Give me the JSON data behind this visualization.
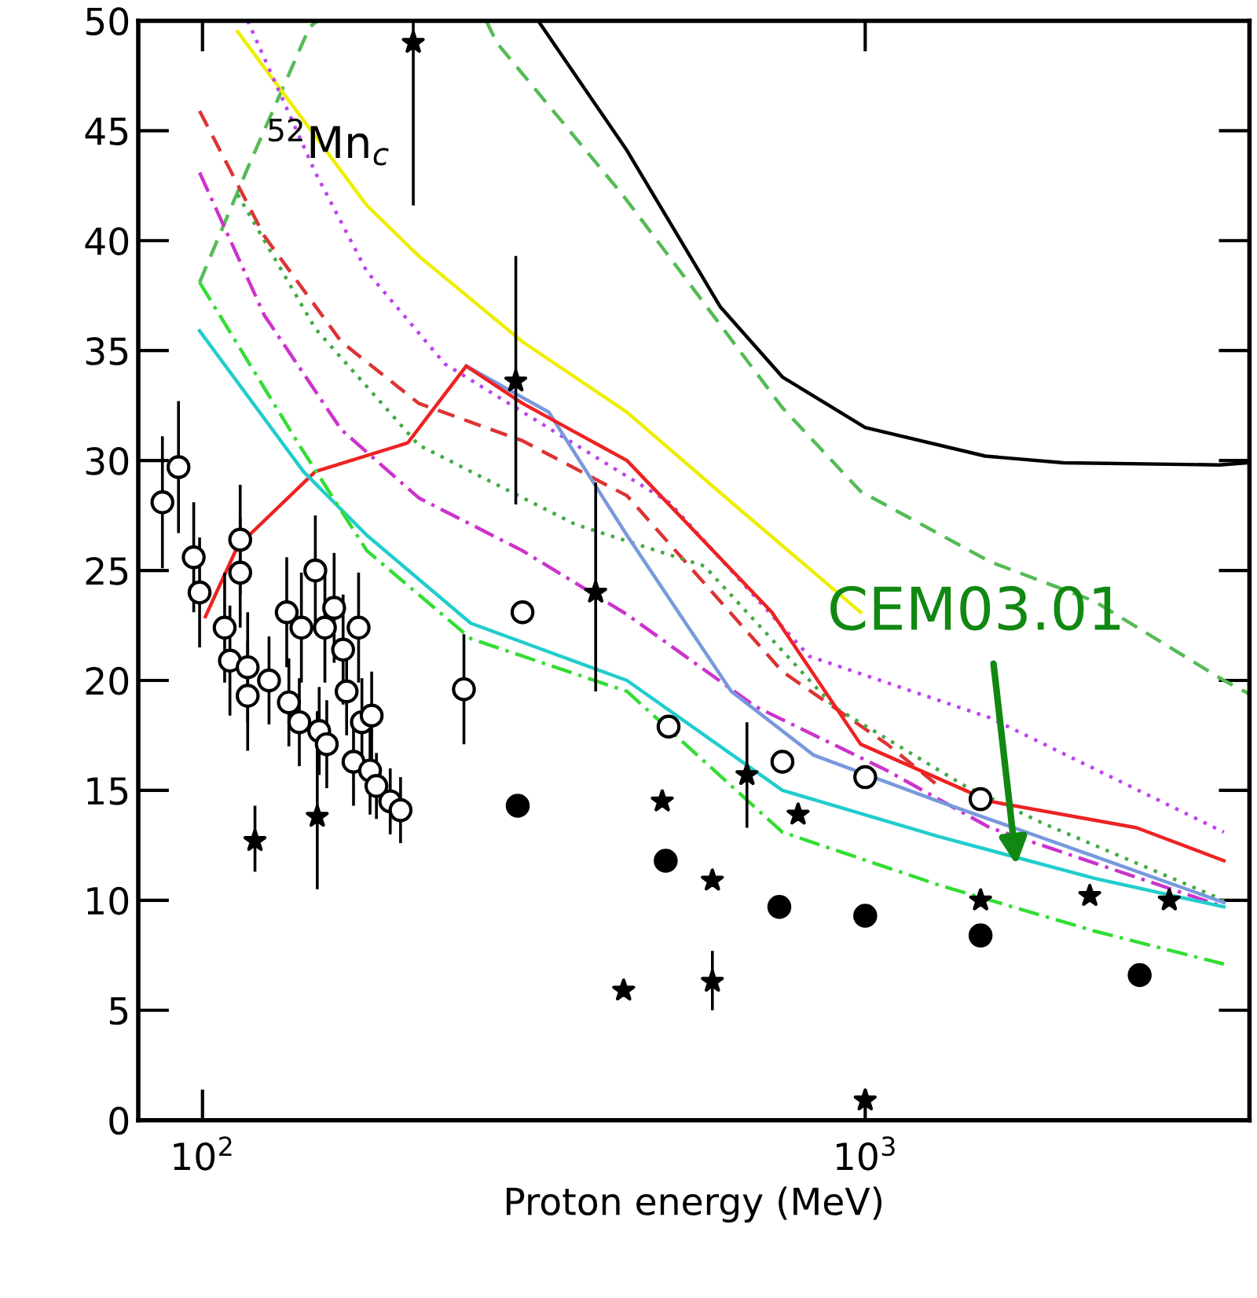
{
  "chart_data": {
    "type": "line",
    "xlabel": "Proton energy (MeV)",
    "log": "x",
    "xlim": [
      80,
      3800
    ],
    "xticks": [
      {
        "value": 100,
        "label": "10$^{2}$"
      },
      {
        "value": 1000,
        "label": "10$^{3}$"
      }
    ],
    "ylim": [
      0,
      50
    ],
    "yticks": [
      0,
      5,
      10,
      15,
      20,
      25,
      30,
      35,
      40,
      45,
      50
    ],
    "grid": false,
    "legend": false,
    "annotations": [
      "$^{52}$Mn$_{c}$",
      {
        "text": "CEM03.01",
        "x": 1691,
        "y": 11.6
      }
    ],
    "series": [
      {
        "color": "#000000",
        "line_style": "solid",
        "x": [
          321,
          437,
          604,
          750,
          1000,
          1518,
          1990,
          3421,
          3790
        ],
        "values": [
          50,
          44.1,
          37.0,
          33.8,
          31.5,
          30.2,
          29.9,
          29.8,
          29.9
        ]
      },
      {
        "color": "#55bb55",
        "line_style": "dashed",
        "x": [
          268,
          278,
          430,
          461,
          750,
          984,
          1543,
          2218,
          3477,
          3790
        ],
        "values": [
          50,
          49,
          42.1,
          40.9,
          32.4,
          28.6,
          25.4,
          23.6,
          20.0,
          19.4
        ]
      },
      {
        "type": "line",
        "color": "#55bb55",
        "line_style": "dashed",
        "x": [
          99,
          117,
          145,
          149
        ],
        "values": [
          38.1,
          43.3,
          49.7,
          50
        ]
      },
      {
        "type": "line",
        "color": "#eeee00",
        "line_style": "solid",
        "x": [
          113,
          177,
          212,
          304,
          437,
          628,
          984
        ],
        "values": [
          49.5,
          41.6,
          39.3,
          35.4,
          32.2,
          28.1,
          23.1
        ]
      },
      {
        "type": "line",
        "color": "#bb44ee",
        "line_style": "dotted",
        "x": [
          117,
          148,
          177,
          232,
          297,
          506,
          823,
          1543,
          3477
        ],
        "values": [
          50,
          43.1,
          38.6,
          34.4,
          32.4,
          28.1,
          21.1,
          18.3,
          13.1
        ]
      },
      {
        "type": "line",
        "color": "#dd3333",
        "line_style": "dashed",
        "x": [
          99,
          124,
          162,
          212,
          304,
          437,
          750,
          1079,
          1290
        ],
        "values": [
          45.9,
          40.2,
          35.4,
          32.6,
          30.9,
          28.4,
          20.4,
          17.1,
          15.2
        ]
      },
      {
        "type": "line",
        "color": "#cc33cc",
        "line_style": "dashdot",
        "x": [
          99,
          124,
          162,
          212,
          304,
          437,
          684,
          1079,
          1543,
          3477
        ],
        "values": [
          43.1,
          36.6,
          31.4,
          28.3,
          25.9,
          23.0,
          18.8,
          15.9,
          13.3,
          9.7
        ]
      },
      {
        "type": "line",
        "color": "#44aa44",
        "line_style": "dotted",
        "x": [
          113,
          148,
          212,
          365,
          572,
          897,
          1414,
          1855,
          3477
        ],
        "values": [
          42.1,
          36.0,
          30.7,
          27.1,
          25.2,
          18.8,
          15.2,
          13.5,
          10.0
        ]
      },
      {
        "type": "line",
        "color": "#7799dd",
        "line_style": "solid",
        "x": [
          250,
          333,
          437,
          628,
          836,
          1290,
          2218,
          3477
        ],
        "values": [
          34.3,
          32.2,
          26.6,
          19.5,
          16.6,
          14.5,
          12.0,
          9.9
        ]
      },
      {
        "type": "line",
        "color": "#ee2222",
        "line_style": "solid",
        "x": [
          101,
          113,
          148,
          204,
          250,
          304,
          437,
          723,
          984,
          1543,
          2567,
          3477
        ],
        "values": [
          22.9,
          26.1,
          29.5,
          30.8,
          34.3,
          32.6,
          30.0,
          23.1,
          17.1,
          14.5,
          13.3,
          11.8
        ]
      },
      {
        "type": "line",
        "color": "#22cccc",
        "line_style": "solid",
        "x": [
          99,
          142,
          177,
          254,
          437,
          750,
          1290,
          2218,
          3477
        ],
        "values": [
          35.9,
          29.5,
          26.6,
          22.6,
          20.0,
          15.0,
          12.9,
          11.0,
          9.7
        ]
      },
      {
        "type": "line",
        "color": "#33dd33",
        "line_style": "dashdot",
        "x": [
          99,
          140,
          177,
          254,
          437,
          750,
          1290,
          2218,
          3477
        ],
        "values": [
          38.1,
          30.7,
          25.9,
          21.9,
          19.5,
          13.1,
          10.7,
          8.6,
          7.1
        ]
      },
      {
        "type": "scatter",
        "color": "#ffffff",
        "marker": "circle",
        "x": [
          304,
          505,
          750,
          1000,
          1493
        ],
        "values": [
          23.1,
          17.9,
          16.3,
          15.6,
          14.6
        ]
      },
      {
        "type": "scatter",
        "color": "#000000",
        "marker": "circle",
        "x": [
          299,
          500,
          742,
          1000,
          1493,
          2595
        ],
        "values": [
          14.3,
          11.8,
          9.7,
          9.3,
          8.4,
          6.6
        ]
      },
      {
        "type": "scatter",
        "color": "#000000",
        "marker": "star",
        "x": [
          208,
          297,
          392,
          120,
          149,
          432,
          494,
          588,
          588,
          663,
          792,
          1000,
          1493,
          2182,
          2876
        ],
        "values": [
          49,
          33.6,
          24.0,
          12.7,
          13.8,
          5.9,
          14.5,
          10.9,
          6.3,
          15.7,
          13.9,
          0.9,
          10.0,
          10.2,
          10.0
        ],
        "errors": [
          [
            41.6,
            50
          ],
          [
            28,
            39.3
          ],
          [
            19.5,
            29
          ],
          [
            11.3,
            14.3
          ],
          [
            10.5,
            18.6
          ],
          null,
          null,
          null,
          [
            5.0,
            7.7
          ],
          [
            13.3,
            18.1
          ],
          null,
          null,
          null,
          null,
          null
        ]
      },
      {
        "type": "scatter",
        "color": "#ffffff",
        "marker": "circle",
        "x": [
          87,
          92,
          97,
          99,
          108,
          110,
          114,
          114,
          117,
          117,
          126,
          134,
          135,
          140,
          141,
          148,
          150,
          153,
          154,
          158,
          163,
          165,
          169,
          172,
          174,
          179,
          180,
          183,
          192,
          199,
          248
        ],
        "values": [
          28.1,
          29.7,
          25.6,
          24.0,
          22.4,
          20.9,
          26.4,
          24.9,
          20.6,
          19.3,
          20.0,
          23.1,
          19.0,
          18.1,
          22.4,
          25.0,
          17.7,
          22.4,
          17.1,
          23.3,
          21.4,
          19.5,
          16.3,
          22.4,
          18.1,
          15.9,
          18.4,
          15.2,
          14.5,
          14.1,
          19.6
        ],
        "errors": [
          3,
          3,
          2.5,
          2.5,
          2.5,
          2.5,
          2.5,
          2.5,
          2.5,
          2.5,
          2,
          2.5,
          2,
          2,
          2.5,
          2.5,
          2,
          2.5,
          2,
          2.5,
          2.5,
          2,
          2,
          2.5,
          2,
          2,
          2,
          1.5,
          1.5,
          1.5,
          2.5
        ]
      }
    ]
  }
}
